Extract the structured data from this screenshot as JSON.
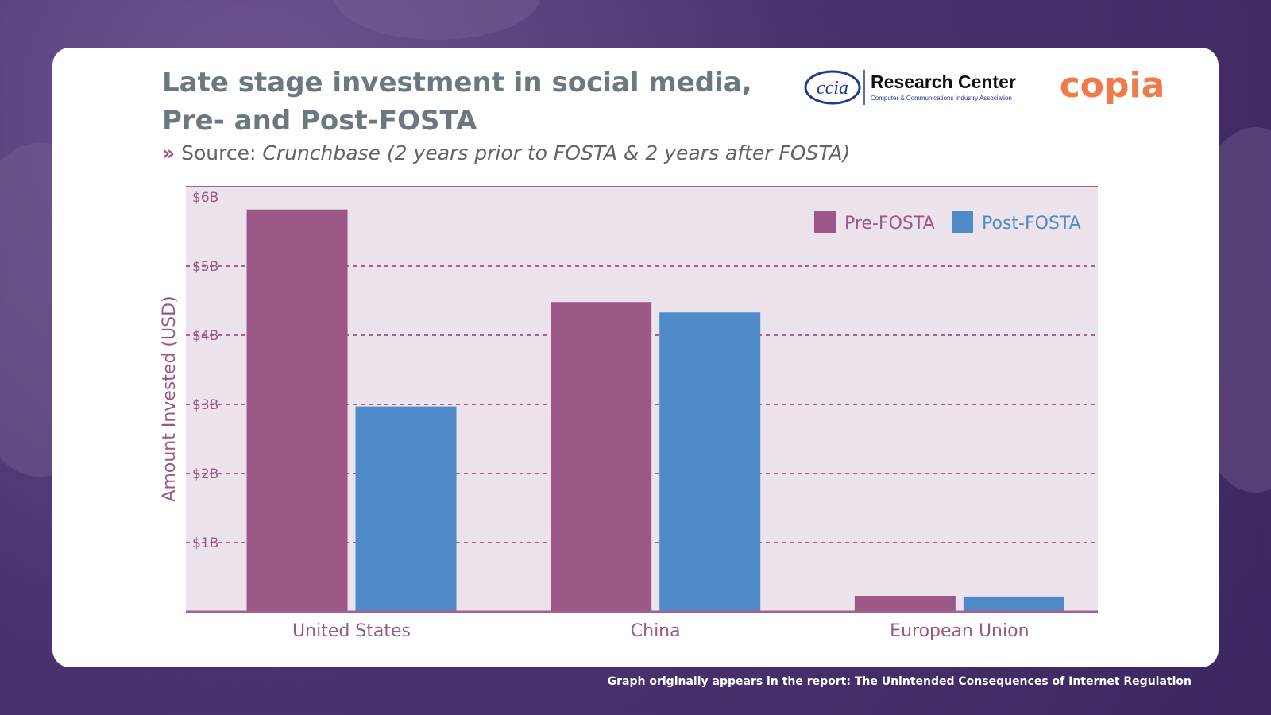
{
  "header": {
    "title_line1": "Late stage investment in social media,",
    "title_line2": "Pre- and Post-FOSTA",
    "source_chevron": "»",
    "source_label": "Source:",
    "source_text": "Crunchbase (2 years prior to FOSTA & 2 years after FOSTA)"
  },
  "logos": {
    "ccia_mark": "ccia",
    "ccia_title": "Research Center",
    "ccia_subtitle": "Computer & Communications Industry Association",
    "copia": "copia"
  },
  "footer": {
    "note": "Graph originally appears in the report: The Unintended Consequences of Internet Regulation"
  },
  "colors": {
    "pre": "#9b5887",
    "post": "#4f8ac9",
    "plot_bg": "#ede3ec",
    "grid": "#a4608f",
    "axis_text": "#9b5887"
  },
  "chart_data": {
    "type": "bar",
    "ylabel": "Amount Invested (USD)",
    "xlabel": "",
    "ylim": [
      0,
      6
    ],
    "ytick_values": [
      1,
      2,
      3,
      4,
      5,
      6
    ],
    "ytick_labels": [
      "$1B",
      "$2B",
      "$3B",
      "$4B",
      "$5B",
      "$6B"
    ],
    "categories": [
      "United States",
      "China",
      "European Union"
    ],
    "series": [
      {
        "name": "Pre-FOSTA",
        "values": [
          5.82,
          4.48,
          0.23
        ]
      },
      {
        "name": "Post-FOSTA",
        "values": [
          2.97,
          4.33,
          0.22
        ]
      }
    ],
    "legend_position": "top-right",
    "grid": true
  }
}
